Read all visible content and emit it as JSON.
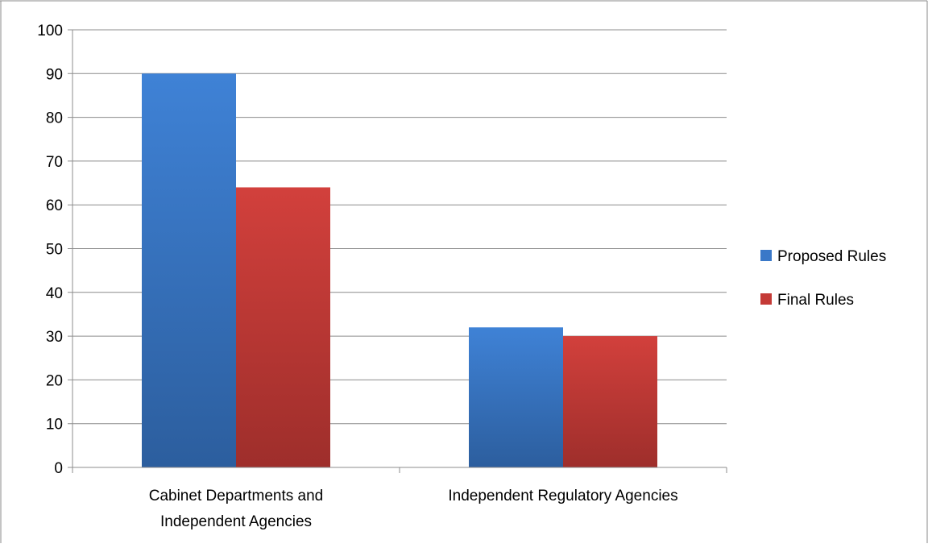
{
  "chart_data": {
    "type": "bar",
    "categories": [
      [
        "Cabinet Departments and",
        "Independent Agencies"
      ],
      [
        "Independent Regulatory Agencies"
      ]
    ],
    "series": [
      {
        "name": "Proposed Rules",
        "values": [
          90,
          32
        ],
        "color": "#3a78c8"
      },
      {
        "name": "Final Rules",
        "values": [
          64,
          30
        ],
        "color": "#c43a36"
      }
    ],
    "yticks": [
      "0",
      "10",
      "20",
      "30",
      "40",
      "50",
      "60",
      "70",
      "80",
      "90",
      "100"
    ],
    "ylim": [
      0,
      100
    ],
    "grid": true,
    "legend_position": "right"
  }
}
